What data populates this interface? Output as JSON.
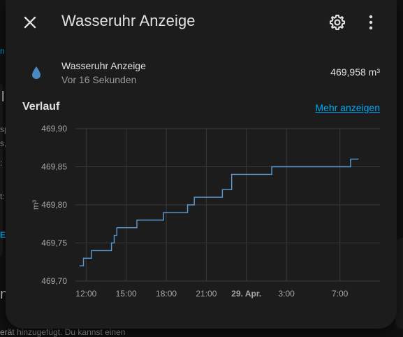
{
  "dialog": {
    "title": "Wasseruhr Anzeige",
    "close_icon": "close-icon",
    "settings_icon": "gear-icon",
    "more_icon": "dots-vertical-icon"
  },
  "entity": {
    "name": "Wasseruhr Anzeige",
    "last_changed": "Vor 16 Sekunden",
    "state": "469,958 m³",
    "icon": "water-drop-icon",
    "icon_color": "#4a8ac2"
  },
  "history": {
    "title": "Verlauf",
    "more_link": "Mehr anzeigen"
  },
  "chart_data": {
    "type": "line",
    "title": "",
    "xlabel": "",
    "ylabel": "m³",
    "ylim": [
      469.7,
      469.9
    ],
    "yticks": [
      "469,90",
      "469,85",
      "469,80",
      "469,75",
      "469,70"
    ],
    "xticks": [
      "12:00",
      "15:00",
      "18:00",
      "21:00",
      "29. Apr.",
      "3:00",
      "7:00"
    ],
    "xticks_hours": [
      12,
      15,
      18,
      21,
      24,
      27,
      31
    ],
    "grid": true,
    "step": true,
    "line_color": "#5b9bd5",
    "series": [
      {
        "x_hours": [
          11.5,
          11.8,
          12.4,
          13.9,
          14.1,
          14.3,
          14.8,
          15.8,
          17.8,
          19.6,
          20.1,
          22.2,
          22.9,
          23.5,
          25.9,
          31.8,
          32.4
        ],
        "values": [
          469.72,
          469.73,
          469.74,
          469.75,
          469.76,
          469.77,
          469.77,
          469.78,
          469.79,
          469.8,
          469.81,
          469.82,
          469.84,
          469.84,
          469.85,
          469.86,
          469.86
        ]
      }
    ]
  },
  "background": {
    "bottom_text": "erät hinzugefügt. Du kannst einen",
    "left_fragments": [
      "n",
      "l",
      "sp",
      "s,",
      ":",
      "t:",
      "E"
    ]
  }
}
